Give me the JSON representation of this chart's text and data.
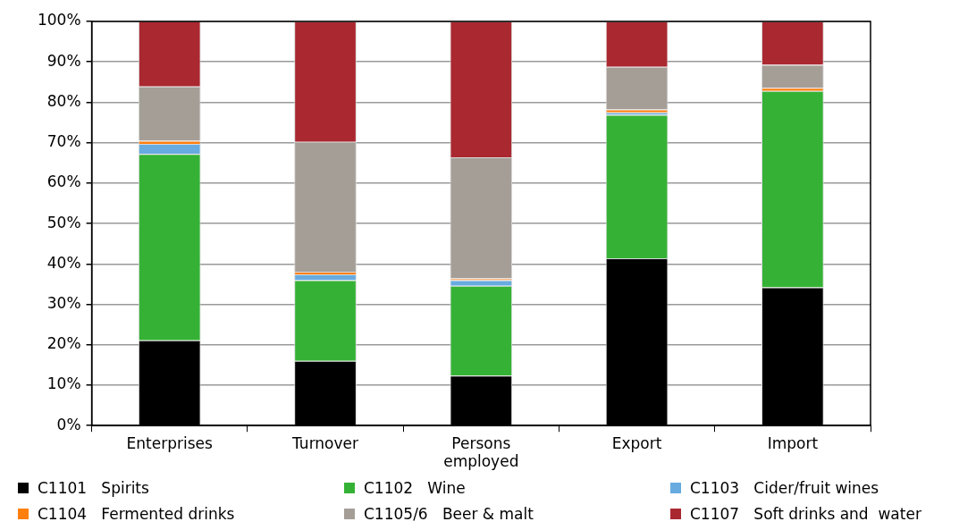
{
  "chart_data": {
    "type": "bar",
    "stacked": true,
    "categories": [
      "Enterprises",
      "Turnover",
      "Persons employed",
      "Export",
      "Import"
    ],
    "series": [
      {
        "name": "C1101   Spirits",
        "color": "#000000",
        "values": [
          21.1,
          16.0,
          12.4,
          41.4,
          34.2
        ]
      },
      {
        "name": "C1102   Wine",
        "color": "#35b235",
        "values": [
          46.1,
          20.0,
          22.2,
          35.5,
          48.6
        ]
      },
      {
        "name": "C1103   Cider/fruit wines",
        "color": "#67abe0",
        "values": [
          2.5,
          1.4,
          1.4,
          0.6,
          0
        ]
      },
      {
        "name": "C1104   Fermented drinks",
        "color": "#ff7f0e",
        "values": [
          0.8,
          0.7,
          0.4,
          0.7,
          0.8
        ]
      },
      {
        "name": "C1105/6   Beer & malt",
        "color": "#a59e97",
        "values": [
          13.4,
          32.1,
          30.0,
          10.6,
          5.7
        ]
      },
      {
        "name": "C1107   Soft drinks and  water",
        "color": "#aa2830",
        "values": [
          16.2,
          29.8,
          33.6,
          11.2,
          10.7
        ]
      }
    ],
    "ylim": [
      0,
      100
    ],
    "yticks": [
      {
        "value": 0,
        "label": "0%"
      },
      {
        "value": 10,
        "label": "10%"
      },
      {
        "value": 20,
        "label": "20%"
      },
      {
        "value": 30,
        "label": "30%"
      },
      {
        "value": 40,
        "label": "40%"
      },
      {
        "value": 50,
        "label": "50%"
      },
      {
        "value": 60,
        "label": "60%"
      },
      {
        "value": 70,
        "label": "70%"
      },
      {
        "value": 80,
        "label": "80%"
      },
      {
        "value": 90,
        "label": "90%"
      },
      {
        "value": 100,
        "label": "100%"
      }
    ],
    "grid": "y",
    "legend": "bottom"
  }
}
